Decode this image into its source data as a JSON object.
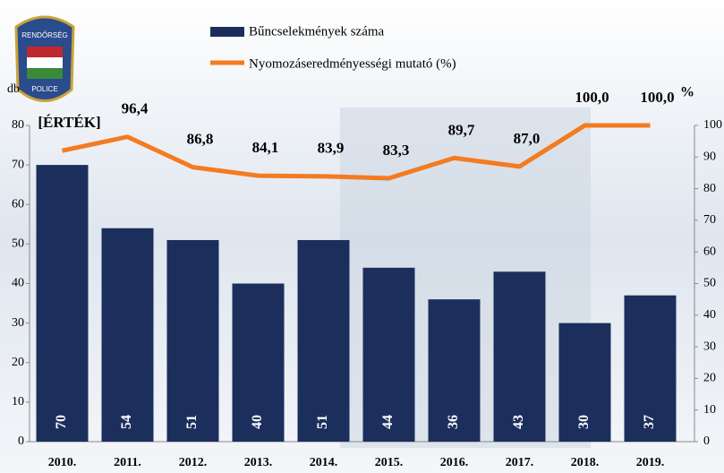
{
  "chart_data": {
    "type": "bar_line",
    "logo": {
      "top": "RENDŐRSÉG",
      "bottom": "POLICE"
    },
    "y_unit": "db",
    "y2_unit": "%",
    "categories": [
      "2010.",
      "2011.",
      "2012.",
      "2013.",
      "2014.",
      "2015.",
      "2016.",
      "2017.",
      "2018.",
      "2019."
    ],
    "series": [
      {
        "name": "Bűncselekmények száma",
        "type": "bar",
        "color": "#1c2f5c",
        "values": [
          70,
          54,
          51,
          40,
          51,
          44,
          36,
          43,
          30,
          37
        ]
      },
      {
        "name": "Nyomozáseredményességi mutató (%)",
        "type": "line",
        "axis": "y2",
        "color": "#f47b20",
        "values": [
          92,
          96.4,
          86.8,
          84.1,
          83.9,
          83.3,
          89.7,
          87.0,
          100.0,
          100.0
        ],
        "value_labels": [
          "[ÉRTÉK]",
          "96,4",
          "86,8",
          "84,1",
          "83,9",
          "83,3",
          "89,7",
          "87,0",
          "100,0",
          "100,0"
        ]
      }
    ],
    "ylim": [
      0,
      80
    ],
    "yticks": [
      0,
      10,
      20,
      30,
      40,
      50,
      60,
      70,
      80
    ],
    "y2lim": [
      0,
      100
    ],
    "y2ticks": [
      0,
      10,
      20,
      30,
      40,
      50,
      60,
      70,
      80,
      90,
      100
    ]
  }
}
